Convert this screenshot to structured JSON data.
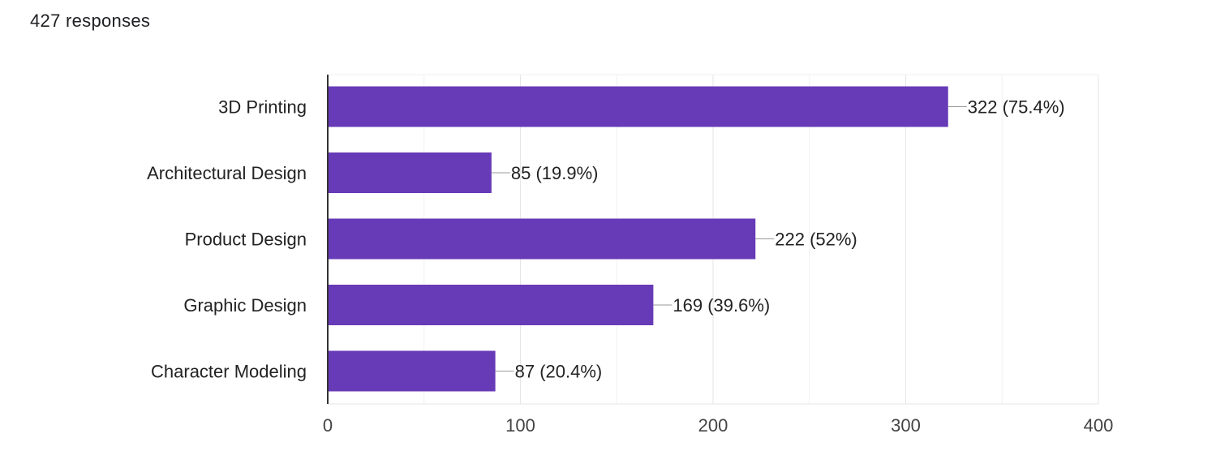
{
  "header": {
    "responses_label": "427 responses"
  },
  "chart_data": {
    "type": "bar",
    "orientation": "horizontal",
    "categories": [
      "3D Printing",
      "Architectural Design",
      "Product Design",
      "Graphic Design",
      "Character Modeling"
    ],
    "values": [
      322,
      85,
      222,
      169,
      87
    ],
    "data_labels": [
      "322 (75.4%)",
      "85 (19.9%)",
      "222 (52%)",
      "169 (39.6%)",
      "87 (20.4%)"
    ],
    "xlim": [
      0,
      400
    ],
    "x_ticks": [
      0,
      100,
      200,
      300,
      400
    ],
    "grid": true,
    "bar_color": "#673ab7",
    "grid_color": "#e8e8e8",
    "axis_color": "#333333"
  }
}
